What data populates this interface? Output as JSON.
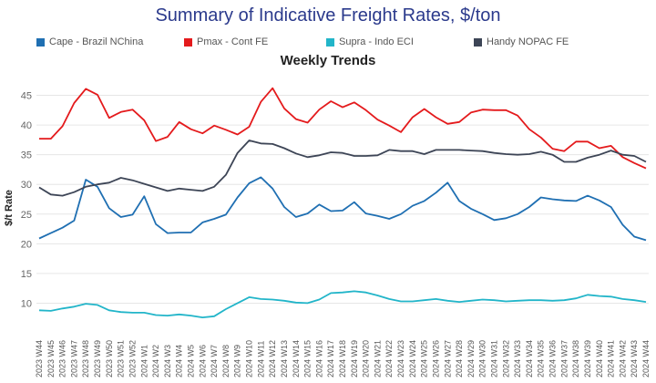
{
  "chart_data": {
    "type": "line",
    "title": "Summary of Indicative Freight Rates, $/ton",
    "subtitle": "Weekly Trends",
    "xlabel": "",
    "ylabel": "$/t Rate",
    "ylim": [
      5,
      48
    ],
    "yticks": [
      10,
      15,
      20,
      25,
      30,
      35,
      40,
      45
    ],
    "grid": true,
    "legend_position": "top",
    "categories": [
      "2023 W44",
      "2023 W45",
      "2023 W46",
      "2023 W47",
      "2023 W48",
      "2023 W49",
      "2023 W50",
      "2023 W51",
      "2023 W52",
      "2024 W1",
      "2024 W2",
      "2024 W3",
      "2024 W4",
      "2024 W5",
      "2024 W6",
      "2024 W7",
      "2024 W8",
      "2024 W9",
      "2024 W10",
      "2024 W11",
      "2024 W12",
      "2024 W13",
      "2024 W14",
      "2024 W15",
      "2024 W16",
      "2024 W17",
      "2024 W18",
      "2024 W19",
      "2024 W20",
      "2024 W21",
      "2024 W22",
      "2024 W23",
      "2024 W24",
      "2024 W25",
      "2024 W26",
      "2024 W27",
      "2024 W28",
      "2024 W29",
      "2024 W30",
      "2024 W31",
      "2024 W32",
      "2024 W33",
      "2024 W34",
      "2024 W35",
      "2024 W36",
      "2024 W37",
      "2024 W38",
      "2024 W39",
      "2024 W40",
      "2024 W41",
      "2024 W42",
      "2024 W43",
      "2024 W44"
    ],
    "series": [
      {
        "name": "Cape - Brazil NChina",
        "color": "#1f6fb2",
        "values": [
          20.9,
          21.8,
          22.7,
          23.9,
          30.8,
          29.6,
          26.0,
          24.5,
          24.9,
          28.0,
          23.3,
          21.8,
          21.9,
          21.9,
          23.6,
          24.2,
          24.9,
          27.8,
          30.2,
          31.2,
          29.3,
          26.2,
          24.5,
          25.1,
          26.6,
          25.5,
          25.6,
          27.0,
          25.1,
          24.7,
          24.2,
          25.0,
          26.4,
          27.2,
          28.6,
          30.3,
          27.2,
          25.9,
          25.0,
          24.0,
          24.3,
          25.0,
          26.2,
          27.8,
          27.5,
          27.3,
          27.2,
          28.1,
          27.3,
          26.2,
          23.2,
          21.2,
          20.6
        ]
      },
      {
        "name": "Pmax - Cont FE",
        "color": "#e41a1c",
        "values": [
          37.7,
          37.7,
          39.8,
          43.7,
          46.1,
          45.1,
          41.2,
          42.2,
          42.6,
          40.8,
          37.3,
          38.0,
          40.5,
          39.3,
          38.6,
          39.9,
          39.2,
          38.4,
          39.7,
          43.9,
          46.2,
          42.8,
          41.0,
          40.4,
          42.6,
          44.0,
          43.0,
          43.8,
          42.5,
          40.9,
          39.9,
          38.8,
          41.3,
          42.7,
          41.3,
          40.2,
          40.5,
          42.1,
          42.6,
          42.5,
          42.5,
          41.6,
          39.3,
          37.9,
          36.0,
          35.6,
          37.2,
          37.2,
          36.1,
          36.5,
          34.6,
          33.6,
          32.7
        ]
      },
      {
        "name": "Supra - Indo ECI",
        "color": "#22b5c9",
        "values": [
          8.8,
          8.7,
          9.1,
          9.4,
          9.9,
          9.7,
          8.8,
          8.5,
          8.4,
          8.4,
          8.0,
          7.9,
          8.1,
          7.9,
          7.6,
          7.8,
          9.0,
          10.0,
          11.0,
          10.7,
          10.6,
          10.4,
          10.1,
          10.0,
          10.6,
          11.7,
          11.8,
          12.0,
          11.8,
          11.3,
          10.7,
          10.3,
          10.3,
          10.5,
          10.7,
          10.4,
          10.2,
          10.4,
          10.6,
          10.5,
          10.3,
          10.4,
          10.5,
          10.5,
          10.4,
          10.5,
          10.8,
          11.4,
          11.2,
          11.1,
          10.7,
          10.5,
          10.2
        ]
      },
      {
        "name": "Handy NOPAC FE",
        "color": "#3d4556",
        "values": [
          29.5,
          28.3,
          28.1,
          28.7,
          29.6,
          30.0,
          30.3,
          31.1,
          30.7,
          30.1,
          29.5,
          28.9,
          29.3,
          29.1,
          28.9,
          29.6,
          31.6,
          35.3,
          37.4,
          36.9,
          36.8,
          36.1,
          35.2,
          34.6,
          34.9,
          35.4,
          35.3,
          34.8,
          34.8,
          34.9,
          35.8,
          35.6,
          35.6,
          35.1,
          35.8,
          35.8,
          35.8,
          35.7,
          35.6,
          35.3,
          35.1,
          35.0,
          35.1,
          35.5,
          35.0,
          33.8,
          33.8,
          34.5,
          35.0,
          35.7,
          35.0,
          34.8,
          33.8
        ]
      }
    ]
  }
}
